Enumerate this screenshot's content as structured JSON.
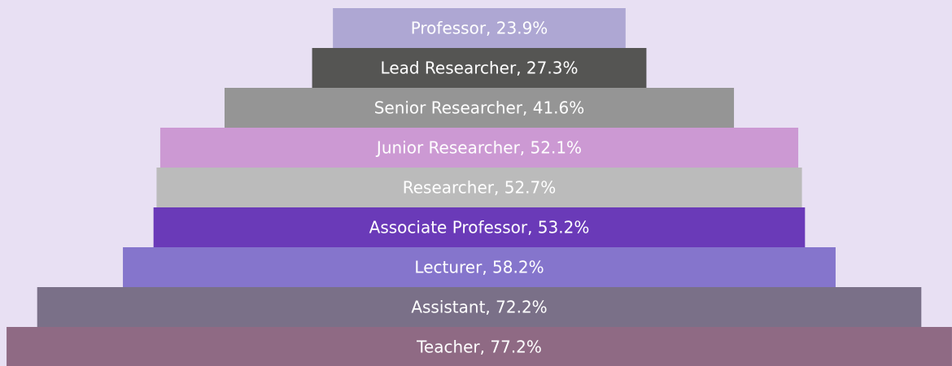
{
  "chart_data": {
    "type": "funnel",
    "values": [
      23.9,
      27.3,
      41.6,
      52.1,
      52.7,
      53.2,
      58.2,
      72.2,
      77.2
    ],
    "value_labels": [
      "Professor, 23.9%",
      "Lead Researcher, 27.3%",
      "Senior Researcher, 41.6%",
      "Junior Researcher, 52.1%",
      "Researcher, 52.7%",
      "Associate Professor, 53.2%",
      "Lecturer, 58.2%",
      "Assistant, 72.2%",
      "Teacher, 77.2%"
    ],
    "colors": [
      "#aea7d3",
      "#555553",
      "#959595",
      "#cc99d3",
      "#bbbbbb",
      "#6a3ab8",
      "#8575cc",
      "#7a7088",
      "#8f6a84"
    ]
  }
}
